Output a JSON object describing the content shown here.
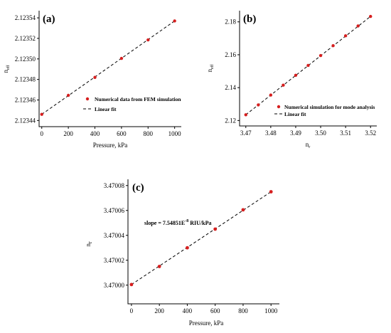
{
  "chart_data": [
    {
      "panel": "(a)",
      "type": "scatter",
      "xlabel": "Pressure, kPa",
      "ylabel": "neff",
      "ylabel_main": "n",
      "ylabel_sub": "eff",
      "xlim": [
        -20,
        1050
      ],
      "ylim": [
        2.123434,
        2.123547
      ],
      "xticks": [
        0,
        200,
        400,
        600,
        800,
        1000
      ],
      "xtick_labels": [
        "0",
        "200",
        "400",
        "600",
        "800",
        "1000"
      ],
      "yticks": [
        2.12344,
        2.12346,
        2.12348,
        2.1235,
        2.12352,
        2.12354
      ],
      "ytick_labels": [
        "2.12344",
        "2.12346",
        "2.12348",
        "2.12350",
        "2.12352",
        "2.12354"
      ],
      "series": [
        {
          "name": "Numerical data from FEM simulation",
          "style": "points",
          "x": [
            0,
            200,
            400,
            600,
            800,
            1000
          ],
          "y": [
            2.123446,
            2.1234645,
            2.123482,
            2.1235005,
            2.1235185,
            2.123537
          ]
        },
        {
          "name": "Linear fit",
          "style": "dashed",
          "x": [
            0,
            1000
          ],
          "y": [
            2.123446,
            2.123537
          ]
        }
      ],
      "legend_position": "center-right"
    },
    {
      "panel": "(b)",
      "type": "scatter",
      "xlabel": "nr",
      "xlabel_main": "n",
      "xlabel_sub": "r",
      "ylabel": "neff",
      "ylabel_main": "n",
      "ylabel_sub": "eff",
      "xlim": [
        3.4675,
        3.5225
      ],
      "ylim": [
        2.1167,
        2.1868
      ],
      "xticks": [
        3.47,
        3.48,
        3.49,
        3.5,
        3.51,
        3.52
      ],
      "xtick_labels": [
        "3.47",
        "3.48",
        "3.49",
        "3.50",
        "3.51",
        "3.52"
      ],
      "yticks": [
        2.12,
        2.14,
        2.16,
        2.18
      ],
      "ytick_labels": [
        "2.12",
        "2.14",
        "2.16",
        "2.18"
      ],
      "series": [
        {
          "name": "Numerical simulation for mode analysis",
          "style": "points",
          "x": [
            3.47,
            3.475,
            3.48,
            3.485,
            3.49,
            3.495,
            3.5,
            3.505,
            3.51,
            3.515,
            3.52
          ],
          "y": [
            2.1235,
            2.1295,
            2.1355,
            2.1415,
            2.1475,
            2.1535,
            2.1595,
            2.1655,
            2.1715,
            2.1775,
            2.1833
          ]
        },
        {
          "name": "Linear fit",
          "style": "dashed",
          "x": [
            3.47,
            3.52
          ],
          "y": [
            2.1235,
            2.1833
          ]
        }
      ],
      "legend_position": "center-right"
    },
    {
      "panel": "(c)",
      "type": "scatter",
      "xlabel": "Pressure, kPa",
      "ylabel": "nr",
      "ylabel_main": "n",
      "ylabel_sub": "r",
      "xlim": [
        -25,
        1060
      ],
      "ylim": [
        3.469985,
        3.470085
      ],
      "xticks": [
        0,
        200,
        400,
        600,
        800,
        1000
      ],
      "xtick_labels": [
        "0",
        "200",
        "400",
        "600",
        "800",
        "1000"
      ],
      "yticks": [
        3.47,
        3.47002,
        3.47004,
        3.47006,
        3.47008
      ],
      "ytick_labels": [
        "3.47000",
        "3.47002",
        "3.47004",
        "3.47006",
        "3.47008"
      ],
      "series": [
        {
          "style": "points",
          "x": [
            0,
            200,
            400,
            600,
            800,
            1000
          ],
          "y": [
            3.4700005,
            3.470015,
            3.47003,
            3.470045,
            3.4700605,
            3.470075
          ]
        },
        {
          "style": "dashed",
          "x": [
            0,
            1000
          ],
          "y": [
            3.4700005,
            3.470075
          ]
        }
      ],
      "annotation": "slope = 7.54851E-8 RIU/kPa",
      "annotation_main": "slope = 7.54851E",
      "annotation_exp": "-8",
      "annotation_tail": " RIU/kPa"
    }
  ]
}
